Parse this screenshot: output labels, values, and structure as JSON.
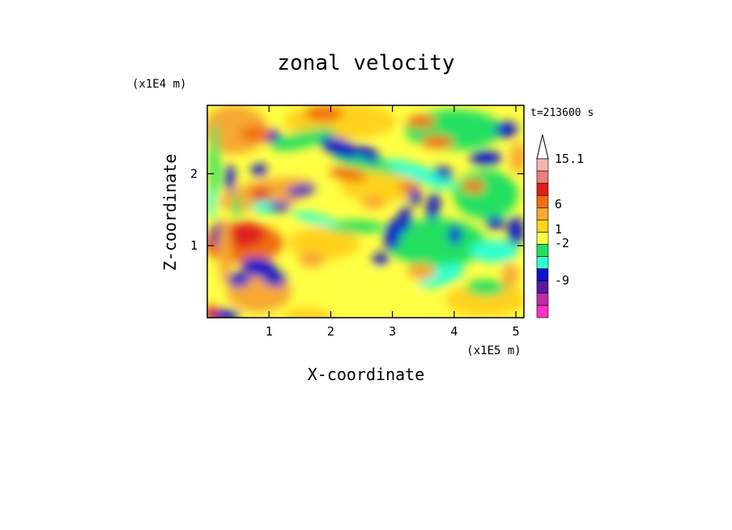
{
  "chart_data": {
    "type": "heatmap",
    "title": "zonal velocity",
    "xlabel": "X-coordinate",
    "ylabel": "Z-coordinate",
    "x_scale_label": "(x1E5 m)",
    "y_scale_label": "(x1E4 m)",
    "time_label": "t=213600 s",
    "xlim": [
      0,
      5.13
    ],
    "ylim": [
      0,
      2.95
    ],
    "xticks": [
      "1",
      "2",
      "3",
      "4",
      "5"
    ],
    "xtick_values": [
      1,
      2,
      3,
      4,
      5
    ],
    "yticks": [
      "1",
      "2"
    ],
    "ytick_values": [
      1,
      2
    ],
    "colorbar": {
      "labels": [
        "15.1",
        "6",
        "1",
        "-2",
        "-9"
      ],
      "label_values": [
        15.1,
        6,
        1,
        -2,
        -9
      ],
      "colors_top_to_bottom": [
        "#f4b4b4",
        "#f07c7c",
        "#e0201a",
        "#f06e10",
        "#f7a830",
        "#ffd21a",
        "#ffff44",
        "#20e060",
        "#32ffd0",
        "#0a14c8",
        "#5a1aa0",
        "#c22aa8",
        "#ff30c8"
      ],
      "above_max_color": "#ffffff"
    }
  }
}
